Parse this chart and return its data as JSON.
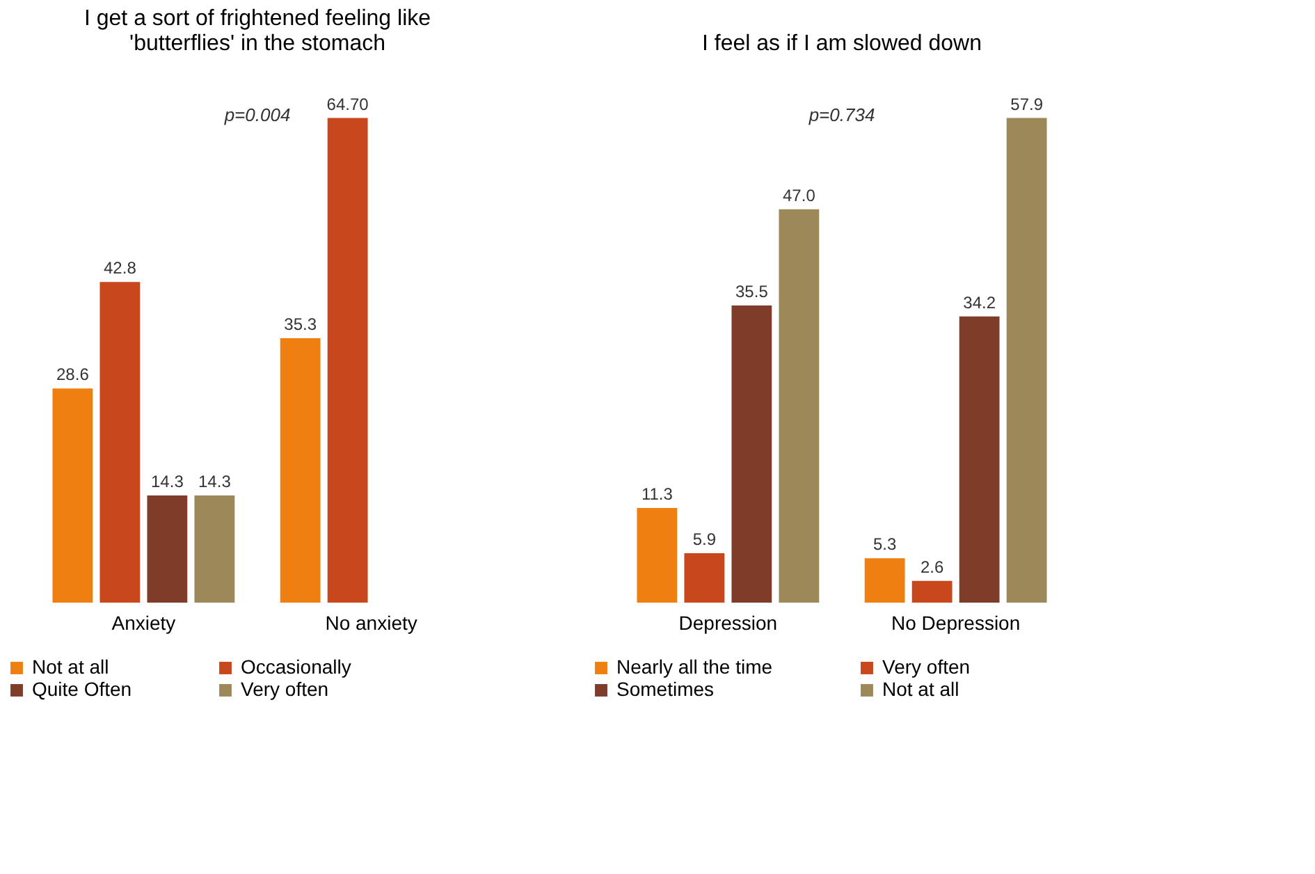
{
  "chart_data": [
    {
      "type": "bar",
      "title": "I get a sort of frightened feeling like 'butterflies' in the stomach",
      "categories": [
        "Anxiety",
        "No anxiety"
      ],
      "legend": "bottom",
      "annotations": [
        "p=0.004"
      ],
      "series": [
        {
          "name": "Not at all",
          "color": "#f07f12",
          "values": [
            28.6,
            35.3
          ],
          "value_labels": [
            "28.6",
            "35.3"
          ]
        },
        {
          "name": "Occasionally",
          "color": "#c8471c",
          "values": [
            42.8,
            64.7
          ],
          "value_labels": [
            "42.8",
            "64.70"
          ]
        },
        {
          "name": "Quite Often",
          "color": "#7e3c29",
          "values": [
            14.3,
            null
          ],
          "value_labels": [
            "14.3",
            null
          ]
        },
        {
          "name": "Very often",
          "color": "#9c8858",
          "values": [
            14.3,
            null
          ],
          "value_labels": [
            "14.3",
            null
          ]
        }
      ]
    },
    {
      "type": "bar",
      "title": "I feel as if I am slowed down",
      "categories": [
        "Depression",
        "No Depression"
      ],
      "legend": "bottom",
      "annotations": [
        "p=0.734"
      ],
      "series": [
        {
          "name": "Nearly all the time",
          "color": "#f07f12",
          "values": [
            11.3,
            5.3
          ],
          "value_labels": [
            "11.3",
            "5.3"
          ]
        },
        {
          "name": "Very often",
          "color": "#c8471c",
          "values": [
            5.9,
            2.6
          ],
          "value_labels": [
            "5.9",
            "2.6"
          ]
        },
        {
          "name": "Sometimes",
          "color": "#7e3c29",
          "values": [
            35.5,
            34.2
          ],
          "value_labels": [
            "35.5",
            "34.2"
          ]
        },
        {
          "name": "Not at all",
          "color": "#9c8858",
          "values": [
            47.0,
            57.9
          ],
          "value_labels": [
            "47.0",
            "57.9"
          ]
        }
      ]
    }
  ]
}
